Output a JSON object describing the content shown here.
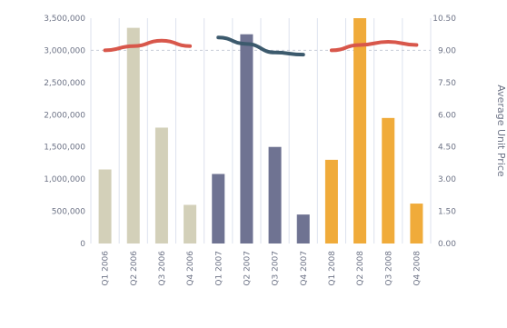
{
  "chart_data": {
    "type": "bar",
    "categories": [
      "Q1 2006",
      "Q2 2006",
      "Q3 2006",
      "Q4 2006",
      "Q1 2007",
      "Q2 2007",
      "Q3 2007",
      "Q4 2007",
      "Q1 2008",
      "Q2 2008",
      "Q3 2008",
      "Q4 2008"
    ],
    "series": [
      {
        "type": "bar",
        "axis": "left",
        "values": [
          1150000,
          3350000,
          1800000,
          600000,
          1080000,
          3250000,
          1500000,
          450000,
          1300000,
          3500000,
          1950000,
          620000
        ],
        "colors": [
          "#d3d0b9",
          "#d3d0b9",
          "#d3d0b9",
          "#d3d0b9",
          "#6f7392",
          "#6f7392",
          "#6f7392",
          "#6f7392",
          "#f0ab3a",
          "#f0ab3a",
          "#f0ab3a",
          "#f0ab3a"
        ]
      },
      {
        "type": "line",
        "axis": "right",
        "color": "#d8574b",
        "x": [
          0,
          1,
          2,
          3
        ],
        "values": [
          9.0,
          9.2,
          9.45,
          9.2
        ]
      },
      {
        "type": "line",
        "axis": "right",
        "color": "#3c5a6d",
        "x": [
          4,
          5,
          6,
          7
        ],
        "values": [
          9.6,
          9.3,
          8.9,
          8.8
        ]
      },
      {
        "type": "line",
        "axis": "right",
        "color": "#d8574b",
        "x": [
          8,
          9,
          10,
          11
        ],
        "values": [
          9.0,
          9.25,
          9.4,
          9.25
        ]
      }
    ],
    "yaxis_left": {
      "range": [
        0,
        3500000
      ],
      "ticks": [
        0,
        500000,
        1000000,
        1500000,
        2000000,
        2500000,
        3000000,
        3500000
      ],
      "tick_labels": [
        "0",
        "500,000",
        "1,000,000",
        "1,500,000",
        "2,000,000",
        "2,500,000",
        "3,000,000",
        "3,500,000"
      ]
    },
    "yaxis_right": {
      "range": [
        0,
        10.5
      ],
      "ticks": [
        0,
        1.5,
        3,
        4.5,
        6,
        7.5,
        9,
        10.5
      ],
      "tick_labels": [
        "0.00",
        "1.50",
        "3.00",
        "4.50",
        "6.00",
        "7.50",
        "9.00",
        "10.50"
      ],
      "label": "Average Unit Price"
    },
    "grid": "vertical",
    "legend": "none",
    "colors": {
      "grid": "#dde2ee",
      "text": "#6d7386",
      "dashed_baseline": "#c8ccd8"
    }
  }
}
